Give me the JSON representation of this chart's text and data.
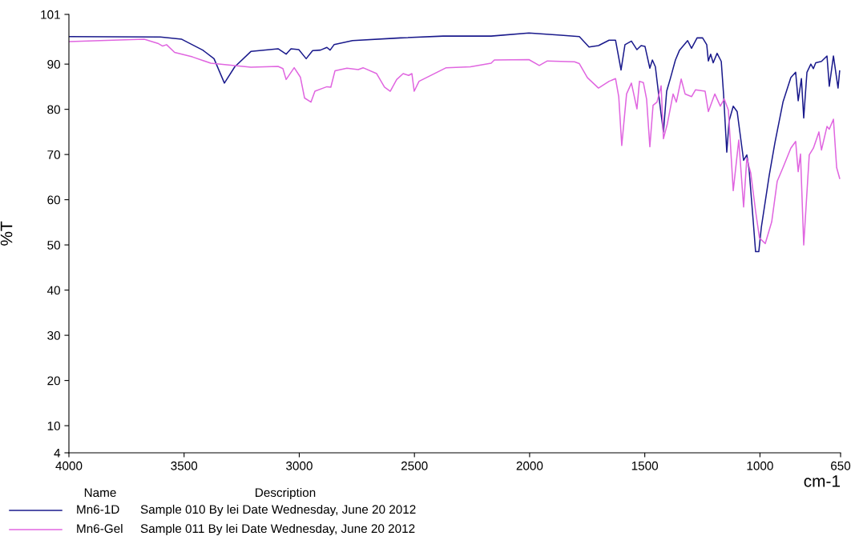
{
  "chart_data": {
    "type": "line",
    "xlabel": "cm-1",
    "ylabel": "%T",
    "xlim": [
      4000,
      650
    ],
    "ylim": [
      4,
      101
    ],
    "xticks": [
      4000,
      3500,
      3000,
      2500,
      2000,
      1500,
      1000,
      650
    ],
    "yticks": [
      4,
      10,
      20,
      30,
      40,
      50,
      60,
      70,
      80,
      90,
      101
    ],
    "grid": false,
    "legend": "bottom",
    "legend_title": "Name",
    "marker": "none",
    "line_style": "solid",
    "annotations": [
      "Description",
      "Sample 010 By lei Date Wednesday, June 20 2012",
      "Sample 011 By lei Date Wednesday, June 20 2012"
    ],
    "series": [
      {
        "name": "Mn6-1D",
        "color": "#1a1a8c",
        "x": [
          4000,
          3603,
          3510,
          3419,
          3370,
          3325,
          3280,
          3210,
          3092,
          3057,
          3036,
          3002,
          2970,
          2942,
          2908,
          2880,
          2866,
          2849,
          2769,
          2560,
          2375,
          2167,
          2003,
          1864,
          1784,
          1742,
          1701,
          1655,
          1627,
          1603,
          1586,
          1558,
          1534,
          1516,
          1499,
          1478,
          1467,
          1454,
          1440,
          1429,
          1419,
          1405,
          1388,
          1367,
          1349,
          1314,
          1297,
          1273,
          1249,
          1231,
          1224,
          1214,
          1203,
          1186,
          1168,
          1158,
          1144,
          1134,
          1116,
          1099,
          1071,
          1057,
          1047,
          1029,
          1019,
          1005,
          994,
          960,
          935,
          900,
          866,
          845,
          834,
          820,
          810,
          796,
          779,
          768,
          758,
          733,
          709,
          699,
          681,
          661,
          654
        ],
        "values": [
          96.1,
          96.0,
          95.5,
          93.1,
          91.2,
          85.8,
          89.4,
          92.8,
          93.4,
          92.2,
          93.4,
          93.2,
          91.2,
          93.0,
          93.1,
          93.7,
          93.1,
          94.3,
          95.2,
          95.8,
          96.2,
          96.2,
          96.9,
          96.4,
          96.1,
          93.8,
          94.1,
          95.3,
          95.3,
          88.7,
          94.3,
          95.1,
          93.2,
          94.1,
          93.9,
          89.1,
          90.9,
          89.4,
          83.4,
          78.9,
          75.0,
          84.0,
          87.0,
          90.9,
          93.1,
          95.2,
          93.5,
          95.8,
          95.8,
          94.3,
          90.7,
          92.2,
          90.3,
          92.4,
          90.6,
          83.4,
          70.5,
          77.4,
          80.7,
          79.5,
          68.7,
          69.9,
          66.6,
          55.1,
          48.5,
          48.5,
          53.9,
          65.3,
          72.6,
          81.6,
          87.0,
          88.2,
          81.9,
          86.8,
          78.1,
          88.2,
          90.0,
          89.0,
          90.3,
          90.6,
          91.8,
          85.1,
          91.8,
          84.7,
          88.5
        ]
      },
      {
        "name": "Mn6-Gel",
        "color": "#e066e0",
        "x": [
          4000,
          3673,
          3614,
          3593,
          3576,
          3541,
          3464,
          3384,
          3210,
          3092,
          3071,
          3057,
          3022,
          2995,
          2977,
          2949,
          2932,
          2901,
          2880,
          2863,
          2845,
          2793,
          2744,
          2723,
          2664,
          2630,
          2605,
          2577,
          2549,
          2525,
          2511,
          2501,
          2480,
          2362,
          2257,
          2167,
          2153,
          2003,
          1958,
          1923,
          1805,
          1784,
          1749,
          1701,
          1655,
          1627,
          1613,
          1600,
          1579,
          1558,
          1534,
          1523,
          1506,
          1492,
          1478,
          1464,
          1447,
          1429,
          1419,
          1402,
          1377,
          1363,
          1342,
          1325,
          1297,
          1280,
          1238,
          1224,
          1196,
          1172,
          1155,
          1137,
          1116,
          1092,
          1071,
          1057,
          1040,
          1019,
          1002,
          977,
          949,
          925,
          900,
          866,
          845,
          834,
          824,
          810,
          786,
          768,
          744,
          733,
          709,
          699,
          681,
          667,
          654
        ],
        "values": [
          95.0,
          95.5,
          94.6,
          94.0,
          94.3,
          92.6,
          91.6,
          90.2,
          89.3,
          89.5,
          89.0,
          86.6,
          89.2,
          87.1,
          82.5,
          81.6,
          84.0,
          84.6,
          85.0,
          84.9,
          88.5,
          89.1,
          88.8,
          89.2,
          87.9,
          84.9,
          84.0,
          86.6,
          87.9,
          87.5,
          87.9,
          84.0,
          86.2,
          89.2,
          89.4,
          90.2,
          90.9,
          91.0,
          89.7,
          90.7,
          90.5,
          90.1,
          87.0,
          84.7,
          86.2,
          86.8,
          82.8,
          72.0,
          83.4,
          85.8,
          80.1,
          86.2,
          85.9,
          82.2,
          71.7,
          80.9,
          81.6,
          85.2,
          73.5,
          76.8,
          83.4,
          81.6,
          86.7,
          83.4,
          82.8,
          84.3,
          84.0,
          79.5,
          83.4,
          80.7,
          82.3,
          79.8,
          62.0,
          73.2,
          58.4,
          69.2,
          65.9,
          57.5,
          51.5,
          50.3,
          55.1,
          64.1,
          67.1,
          71.4,
          72.9,
          66.2,
          70.1,
          50.0,
          69.9,
          71.4,
          75.0,
          71.0,
          76.2,
          75.6,
          77.8,
          67.1,
          64.7
        ]
      }
    ]
  }
}
